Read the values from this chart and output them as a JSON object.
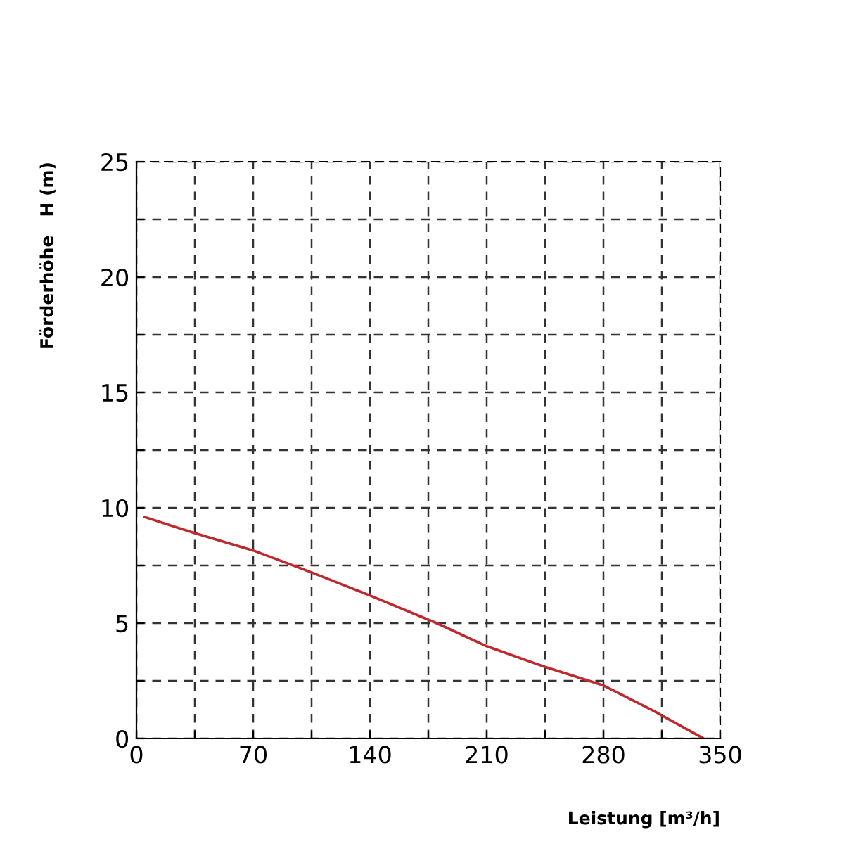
{
  "chart_data": {
    "type": "line",
    "xlabel": "Leistung [m³/h]",
    "ylabel": "Förderhöhe   H (m)",
    "x": [
      5,
      35,
      70,
      105,
      140,
      180,
      210,
      245,
      280,
      310,
      330,
      340
    ],
    "series": [
      {
        "color": "#c0282d",
        "values": [
          9.6,
          8.9,
          8.15,
          7.2,
          6.2,
          5.0,
          4.0,
          3.1,
          2.3,
          1.2,
          0.4,
          0
        ]
      }
    ],
    "xlim": [
      0,
      350
    ],
    "ylim": [
      0,
      25
    ],
    "xticks": [
      0,
      {
        "value": 35,
        "label": null
      },
      70,
      {
        "value": 105,
        "label": null
      },
      140,
      {
        "value": 175,
        "label": null
      },
      210,
      {
        "value": 245,
        "label": null
      },
      280,
      {
        "value": 315,
        "label": null
      },
      350
    ],
    "yticks": [
      0,
      {
        "value": 2.5,
        "label": null
      },
      5,
      {
        "value": 7.5,
        "label": null
      },
      10,
      {
        "value": 12.5,
        "label": null
      },
      15,
      {
        "value": 17.5,
        "label": null
      },
      20,
      {
        "value": 22.5,
        "label": null
      },
      25
    ],
    "grid": true,
    "line_style": "solid",
    "marker": "none"
  }
}
